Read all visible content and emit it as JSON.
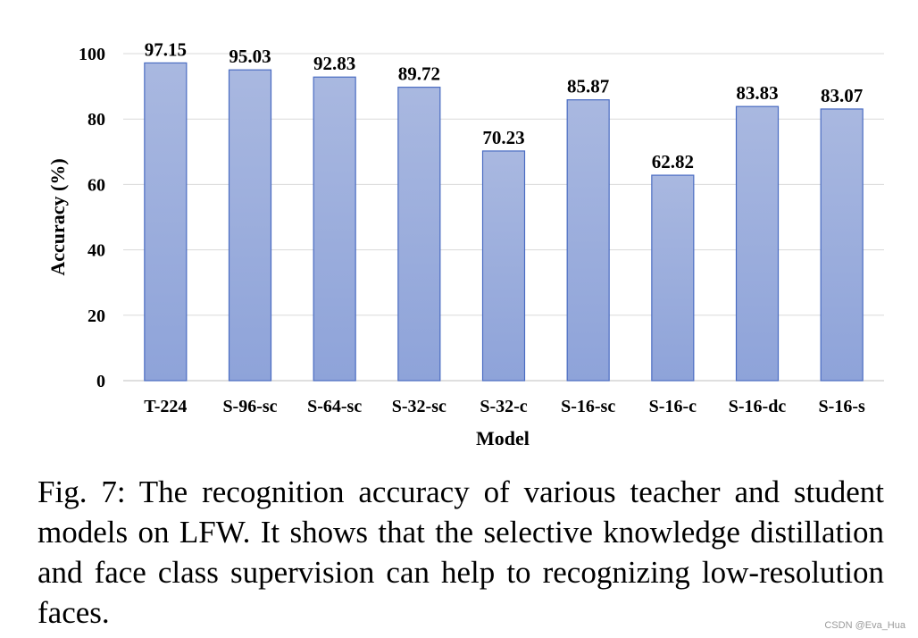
{
  "chart_data": {
    "type": "bar",
    "xlabel": "Model",
    "ylabel": "Accuracy (%)",
    "ylim": [
      0,
      100
    ],
    "yticks": [
      0,
      20,
      40,
      60,
      80,
      100
    ],
    "grid": true,
    "categories": [
      "T-224",
      "S-96-sc",
      "S-64-sc",
      "S-32-sc",
      "S-32-c",
      "S-16-sc",
      "S-16-c",
      "S-16-dc",
      "S-16-s"
    ],
    "values": [
      97.15,
      95.03,
      92.83,
      89.72,
      70.23,
      85.87,
      62.82,
      83.83,
      83.07
    ],
    "value_labels": [
      "97.15",
      "95.03",
      "92.83",
      "89.72",
      "70.23",
      "85.87",
      "62.82",
      "83.83",
      "83.07"
    ],
    "bar_color_top": "#a9b8e0",
    "bar_color_bottom": "#8ea3d9",
    "bar_border": "#4a6cc2"
  },
  "caption": "Fig. 7: The recognition accuracy of various teacher and student models on LFW. It shows that the selective knowledge distillation and face class supervision can help to recognizing low-resolution faces.",
  "watermark": "CSDN @Eva_Hua"
}
